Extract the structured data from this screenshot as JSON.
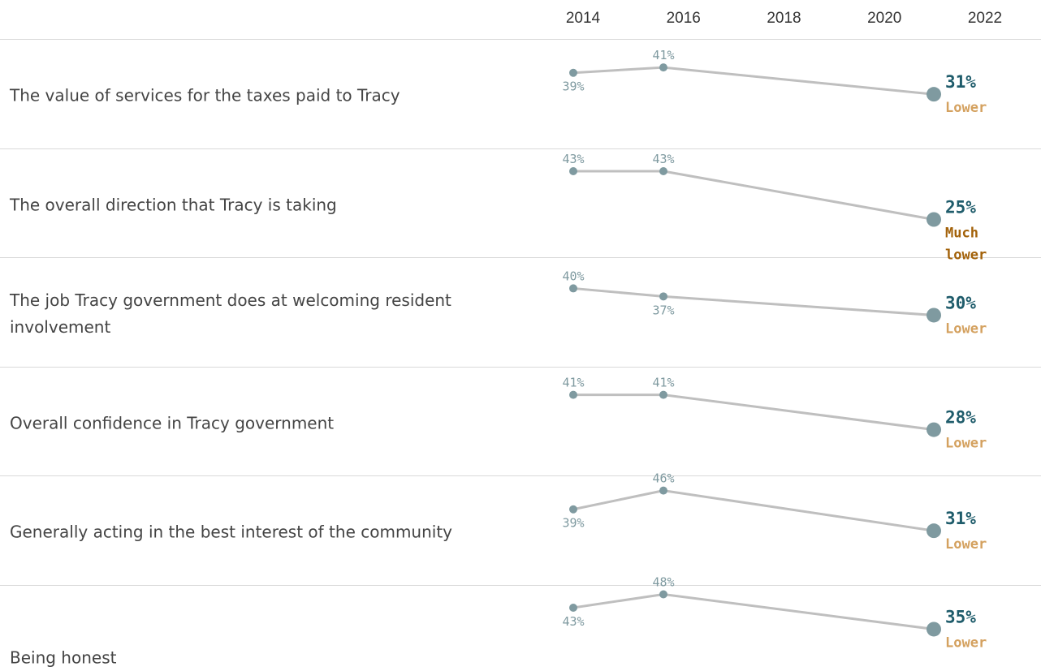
{
  "chart_data": {
    "type": "line",
    "x": [
      2014,
      2016,
      2022
    ],
    "axis_ticks": [
      "2014",
      "2016",
      "2018",
      "2020",
      "2022"
    ],
    "xlim": [
      2014,
      2022
    ],
    "ylim": [
      25,
      48
    ],
    "series": [
      {
        "name": "The value of services for the taxes paid to Tracy",
        "values": [
          39,
          41,
          31
        ],
        "labels": [
          "39%",
          "41%",
          "31%"
        ],
        "comparison": [
          "Lower"
        ],
        "comparison_color": "#d4a15f"
      },
      {
        "name": "The overall direction that Tracy is taking",
        "values": [
          43,
          43,
          25
        ],
        "labels": [
          "43%",
          "43%",
          "25%"
        ],
        "comparison": [
          "Much",
          "lower"
        ],
        "comparison_color": "#a3620a"
      },
      {
        "name": "The job Tracy government does at welcoming resident involvement",
        "values": [
          40,
          37,
          30
        ],
        "labels": [
          "40%",
          "37%",
          "30%"
        ],
        "comparison": [
          "Lower"
        ],
        "comparison_color": "#d4a15f"
      },
      {
        "name": "Overall confidence in Tracy government",
        "values": [
          41,
          41,
          28
        ],
        "labels": [
          "41%",
          "41%",
          "28%"
        ],
        "comparison": [
          "Lower"
        ],
        "comparison_color": "#d4a15f"
      },
      {
        "name": "Generally acting in the best interest of the community",
        "values": [
          39,
          46,
          31
        ],
        "labels": [
          "39%",
          "46%",
          "31%"
        ],
        "comparison": [
          "Lower"
        ],
        "comparison_color": "#d4a15f"
      },
      {
        "name": "Being honest",
        "values": [
          43,
          48,
          35
        ],
        "labels": [
          "43%",
          "48%",
          "35%"
        ],
        "comparison": [
          "Lower"
        ],
        "comparison_color": "#d4a15f"
      }
    ],
    "line_color": "#bfbfbf",
    "point_color": "#7f9aa0",
    "final_value_color": "#1f5c6b",
    "grid": false,
    "legend": "none"
  }
}
